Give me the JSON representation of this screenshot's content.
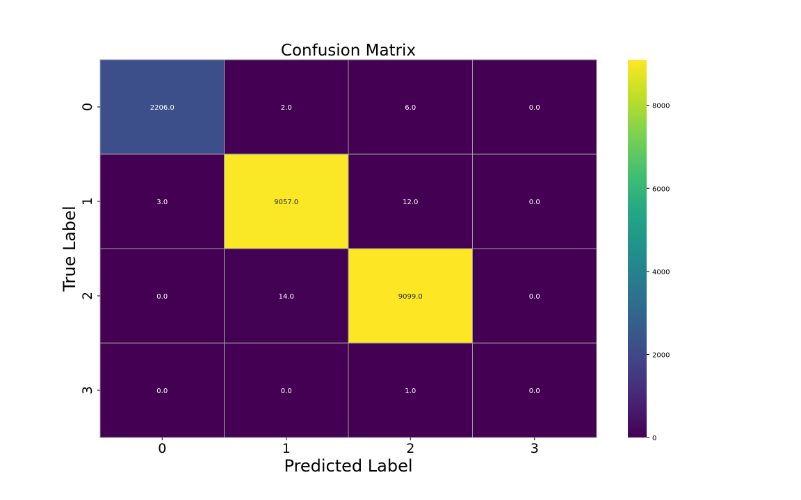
{
  "chart_data": {
    "type": "heatmap",
    "title": "Confusion Matrix",
    "xlabel": "Predicted Label",
    "ylabel": "True Label",
    "x_categories": [
      "0",
      "1",
      "2",
      "3"
    ],
    "y_categories": [
      "0",
      "1",
      "2",
      "3"
    ],
    "matrix": [
      [
        2206.0,
        2.0,
        6.0,
        0.0
      ],
      [
        3.0,
        9057.0,
        12.0,
        0.0
      ],
      [
        0.0,
        14.0,
        9099.0,
        0.0
      ],
      [
        0.0,
        0.0,
        1.0,
        0.0
      ]
    ],
    "cell_labels": [
      [
        "2206.0",
        "2.0",
        "6.0",
        "0.0"
      ],
      [
        "3.0",
        "9057.0",
        "12.0",
        "0.0"
      ],
      [
        "0.0",
        "14.0",
        "9099.0",
        "0.0"
      ],
      [
        "0.0",
        "0.0",
        "1.0",
        "0.0"
      ]
    ],
    "colormap": "viridis",
    "colorbar": {
      "range": [
        0,
        9099
      ],
      "ticks": [
        0,
        2000,
        4000,
        6000,
        8000
      ],
      "tick_labels": [
        "0",
        "2000",
        "4000",
        "6000",
        "8000"
      ]
    },
    "grid_line_color": "#a0a0a0"
  }
}
